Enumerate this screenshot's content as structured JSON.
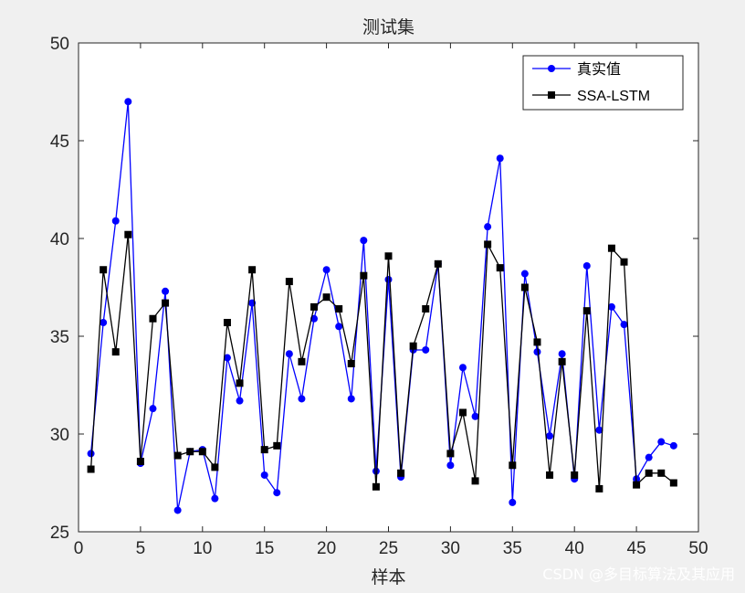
{
  "chart_data": {
    "type": "line",
    "title": "测试集",
    "xlabel": "样本",
    "ylabel": "",
    "xlim": [
      0,
      50
    ],
    "ylim": [
      25,
      50
    ],
    "xticks": [
      "0",
      "5",
      "10",
      "15",
      "20",
      "25",
      "30",
      "35",
      "40",
      "45",
      "50"
    ],
    "yticks": [
      "25",
      "30",
      "35",
      "40",
      "45",
      "50"
    ],
    "x": [
      1,
      2,
      3,
      4,
      5,
      6,
      7,
      8,
      9,
      10,
      11,
      12,
      13,
      14,
      15,
      16,
      17,
      18,
      19,
      20,
      21,
      22,
      23,
      24,
      25,
      26,
      27,
      28,
      29,
      30,
      31,
      32,
      33,
      34,
      35,
      36,
      37,
      38,
      39,
      40,
      41,
      42,
      43,
      44,
      45,
      46,
      47,
      48
    ],
    "series": [
      {
        "name": "真实值",
        "color": "#0000ff",
        "marker": "circle",
        "values": [
          29.0,
          35.7,
          40.9,
          47.0,
          28.5,
          31.3,
          37.3,
          26.1,
          29.1,
          29.2,
          26.7,
          33.9,
          31.7,
          36.7,
          27.9,
          27.0,
          34.1,
          31.8,
          35.9,
          38.4,
          35.5,
          31.8,
          39.9,
          28.1,
          37.9,
          27.8,
          34.3,
          34.3,
          38.7,
          28.4,
          33.4,
          30.9,
          40.6,
          44.1,
          26.5,
          38.2,
          34.2,
          29.9,
          34.1,
          27.7,
          38.6,
          30.2,
          36.5,
          35.6,
          27.7,
          28.8,
          29.6,
          29.4
        ]
      },
      {
        "name": "SSA-LSTM",
        "color": "#000000",
        "marker": "square",
        "values": [
          28.2,
          38.4,
          34.2,
          40.2,
          28.6,
          35.9,
          36.7,
          28.9,
          29.1,
          29.1,
          28.3,
          35.7,
          32.6,
          38.4,
          29.2,
          29.4,
          37.8,
          33.7,
          36.5,
          37.0,
          36.4,
          33.6,
          38.1,
          27.3,
          39.1,
          28.0,
          34.5,
          36.4,
          38.7,
          29.0,
          31.1,
          27.6,
          39.7,
          38.5,
          28.4,
          37.5,
          34.7,
          27.9,
          33.7,
          27.9,
          36.3,
          27.2,
          39.5,
          38.8,
          27.4,
          28.0,
          28.0,
          27.5
        ]
      }
    ],
    "grid": false,
    "legend_position": "top-right"
  },
  "watermark": "CSDN @多目标算法及其应用"
}
